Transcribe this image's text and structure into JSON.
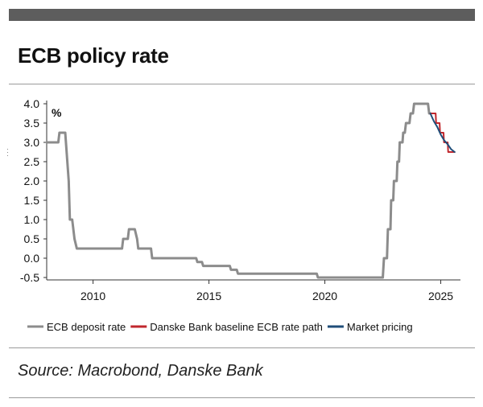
{
  "title": "ECB policy rate",
  "source": "Source: Macrobond, Danske Bank",
  "chart_data": {
    "type": "line",
    "title": "ECB policy rate",
    "ylabel": "%",
    "xlabel": "",
    "xlim": [
      2008.0,
      2025.85
    ],
    "ylim": [
      -0.5,
      4.0
    ],
    "x_ticks": [
      "2010",
      "2015",
      "2020",
      "2025"
    ],
    "y_ticks": [
      "4.0",
      "3.5",
      "3.0",
      "2.5",
      "2.0",
      "1.5",
      "1.0",
      "0.5",
      "0.0",
      "-0.5"
    ],
    "grid": false,
    "legend_position": "bottom",
    "series": [
      {
        "name": "ECB deposit rate",
        "color": "#8c8c8c",
        "points": [
          [
            2008.0,
            3.0
          ],
          [
            2008.5,
            3.0
          ],
          [
            2008.55,
            3.25
          ],
          [
            2008.8,
            3.25
          ],
          [
            2008.95,
            2.0
          ],
          [
            2009.0,
            1.0
          ],
          [
            2009.1,
            1.0
          ],
          [
            2009.2,
            0.5
          ],
          [
            2009.3,
            0.25
          ],
          [
            2011.25,
            0.25
          ],
          [
            2011.3,
            0.5
          ],
          [
            2011.5,
            0.5
          ],
          [
            2011.55,
            0.75
          ],
          [
            2011.8,
            0.75
          ],
          [
            2011.9,
            0.5
          ],
          [
            2011.95,
            0.25
          ],
          [
            2012.5,
            0.25
          ],
          [
            2012.55,
            0.0
          ],
          [
            2014.45,
            0.0
          ],
          [
            2014.5,
            -0.1
          ],
          [
            2014.7,
            -0.1
          ],
          [
            2014.75,
            -0.2
          ],
          [
            2015.9,
            -0.2
          ],
          [
            2015.95,
            -0.3
          ],
          [
            2016.2,
            -0.3
          ],
          [
            2016.25,
            -0.4
          ],
          [
            2019.65,
            -0.4
          ],
          [
            2019.7,
            -0.5
          ],
          [
            2022.5,
            -0.5
          ],
          [
            2022.55,
            0.0
          ],
          [
            2022.68,
            0.0
          ],
          [
            2022.72,
            0.75
          ],
          [
            2022.83,
            0.75
          ],
          [
            2022.86,
            1.5
          ],
          [
            2022.95,
            1.5
          ],
          [
            2022.98,
            2.0
          ],
          [
            2023.1,
            2.0
          ],
          [
            2023.13,
            2.5
          ],
          [
            2023.2,
            2.5
          ],
          [
            2023.23,
            3.0
          ],
          [
            2023.35,
            3.0
          ],
          [
            2023.38,
            3.25
          ],
          [
            2023.45,
            3.25
          ],
          [
            2023.5,
            3.5
          ],
          [
            2023.65,
            3.5
          ],
          [
            2023.7,
            3.75
          ],
          [
            2023.8,
            3.75
          ],
          [
            2023.85,
            4.0
          ],
          [
            2024.45,
            4.0
          ],
          [
            2024.5,
            3.75
          ],
          [
            2024.55,
            3.75
          ]
        ]
      },
      {
        "name": "Danske Bank baseline ECB rate path",
        "color": "#c0272d",
        "points": [
          [
            2024.55,
            3.75
          ],
          [
            2024.78,
            3.75
          ],
          [
            2024.8,
            3.5
          ],
          [
            2024.95,
            3.5
          ],
          [
            2024.97,
            3.25
          ],
          [
            2025.12,
            3.25
          ],
          [
            2025.14,
            3.0
          ],
          [
            2025.3,
            3.0
          ],
          [
            2025.32,
            2.75
          ],
          [
            2025.6,
            2.75
          ]
        ]
      },
      {
        "name": "Market pricing",
        "color": "#1f4e79",
        "points": [
          [
            2024.55,
            3.75
          ],
          [
            2024.7,
            3.55
          ],
          [
            2024.85,
            3.4
          ],
          [
            2025.0,
            3.2
          ],
          [
            2025.15,
            3.05
          ],
          [
            2025.3,
            2.95
          ],
          [
            2025.45,
            2.82
          ],
          [
            2025.6,
            2.75
          ]
        ]
      }
    ]
  }
}
